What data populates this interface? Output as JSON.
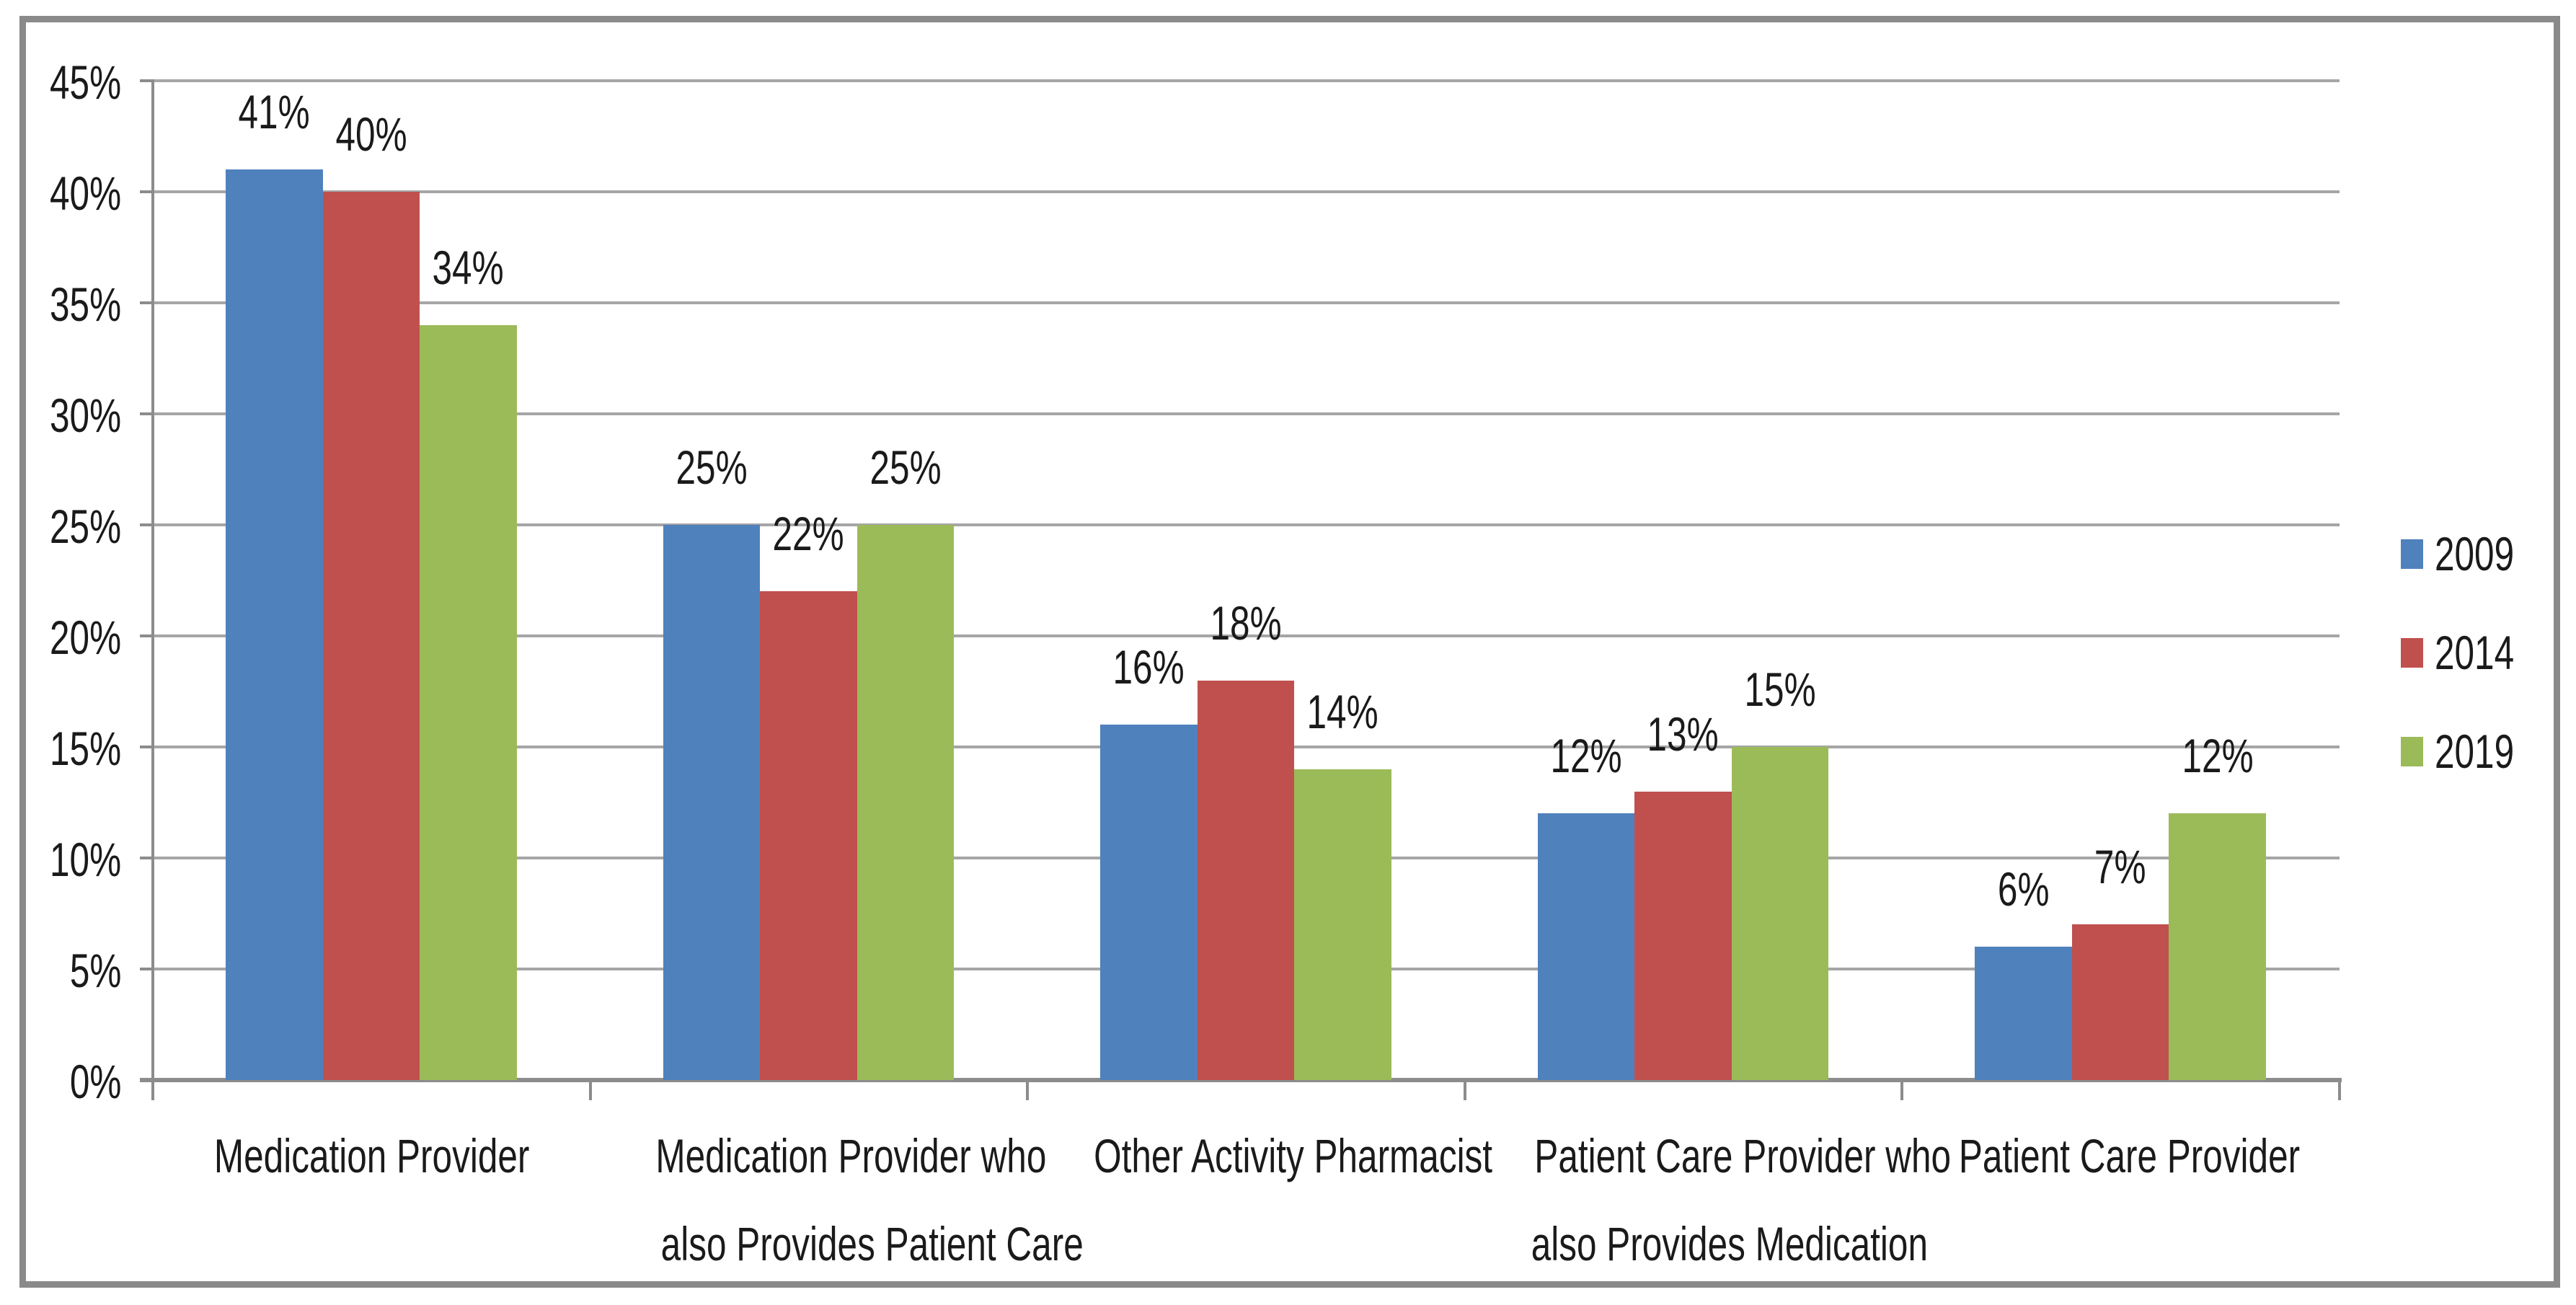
{
  "chart_data": {
    "type": "bar",
    "categories": [
      {
        "label": "Medication Provider",
        "lines": [
          "Medication Provider"
        ]
      },
      {
        "label": "Medication Provider who also Provides Patient Care",
        "lines": [
          "Medication Provider who",
          "also Provides Patient Care"
        ]
      },
      {
        "label": "Other Activity Pharmacist",
        "lines": [
          "Other Activity Pharmacist"
        ]
      },
      {
        "label": "Patient Care Provider who also Provides Medication",
        "lines": [
          "Patient Care Provider who",
          "also Provides Medication"
        ]
      },
      {
        "label": "Patient Care Provider",
        "lines": [
          "Patient Care Provider"
        ]
      }
    ],
    "series": [
      {
        "name": "2009",
        "color": "#4F81BD",
        "values": [
          41,
          25,
          16,
          12,
          6
        ],
        "point_labels": [
          "41%",
          "25%",
          "16%",
          "12%",
          "6%"
        ]
      },
      {
        "name": "2014",
        "color": "#C0504D",
        "values": [
          40,
          22,
          18,
          13,
          7
        ],
        "point_labels": [
          "40%",
          "22%",
          "18%",
          "13%",
          "7%"
        ]
      },
      {
        "name": "2019",
        "color": "#9BBB59",
        "values": [
          34,
          25,
          14,
          15,
          12
        ],
        "point_labels": [
          "34%",
          "25%",
          "14%",
          "15%",
          "12%"
        ]
      }
    ],
    "y_axis": {
      "min": 0,
      "max": 45,
      "step": 5,
      "tick_values": [
        0,
        5,
        10,
        15,
        20,
        25,
        30,
        35,
        40,
        45
      ],
      "tick_labels": [
        "0%",
        "5%",
        "10%",
        "15%",
        "20%",
        "25%",
        "30%",
        "35%",
        "40%",
        "45%"
      ]
    },
    "xlabel": "",
    "ylabel": "",
    "grid": true,
    "legend": {
      "position": "right"
    },
    "colors": {
      "gridline": "#A6A6A6",
      "axis": "#8C8C8C",
      "frame_border": "#8A8A8A",
      "text": "#1A1A1A",
      "background": "#FFFFFF"
    }
  }
}
